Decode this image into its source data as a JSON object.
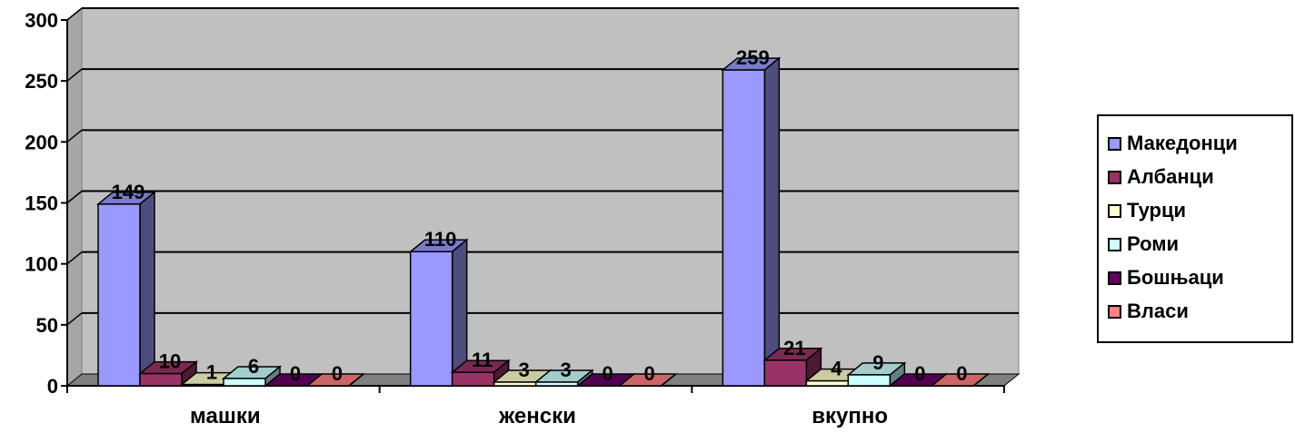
{
  "chart_data": {
    "type": "bar",
    "categories": [
      "машки",
      "женски",
      "вкупно"
    ],
    "series": [
      {
        "name": "Македонци",
        "color": "#9999ff",
        "values": [
          149,
          110,
          259
        ]
      },
      {
        "name": "Албанци",
        "color": "#993366",
        "values": [
          10,
          11,
          21
        ]
      },
      {
        "name": "Турци",
        "color": "#ffffcc",
        "values": [
          1,
          3,
          4
        ]
      },
      {
        "name": "Роми",
        "color": "#ccffff",
        "values": [
          6,
          3,
          9
        ]
      },
      {
        "name": "Бошњаци",
        "color": "#660066",
        "values": [
          0,
          0,
          0
        ]
      },
      {
        "name": "Власи",
        "color": "#ff8080",
        "values": [
          0,
          0,
          0
        ]
      }
    ],
    "ylim": [
      0,
      300
    ],
    "yticks": [
      "0",
      "50",
      "100",
      "150",
      "200",
      "250",
      "300"
    ],
    "grid": true,
    "legend_position": "right",
    "wall_color": "#c0c0c0",
    "floor_color": "#808080"
  }
}
